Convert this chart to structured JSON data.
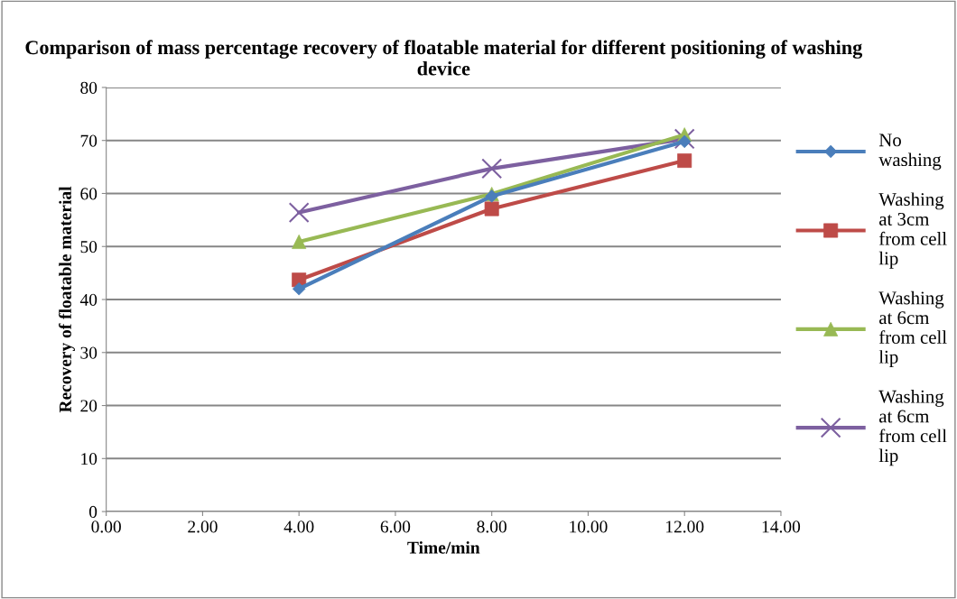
{
  "chart_data": {
    "type": "line",
    "title": "Comparison of mass percentage recovery of floatable material for different positioning of washing device",
    "xlabel": "Time/min",
    "ylabel": "Recovery of floatable material",
    "x": [
      4,
      8,
      12
    ],
    "series": [
      {
        "name": "No washing",
        "color": "#4a7ebb",
        "marker": "diamond",
        "values": [
          42.0,
          59.5,
          69.8
        ]
      },
      {
        "name": "Washing at 3cm from cell lip",
        "color": "#be4b48",
        "marker": "square",
        "values": [
          43.7,
          57.1,
          66.2
        ]
      },
      {
        "name": "Washing at 6cm from cell lip",
        "color": "#98b954",
        "marker": "triangle",
        "values": [
          50.9,
          59.9,
          71.1
        ]
      },
      {
        "name": "Washing at 6cm from cell lip",
        "color": "#7d60a0",
        "marker": "cross",
        "values": [
          56.4,
          64.7,
          70.3
        ]
      }
    ],
    "xlim": [
      0,
      14
    ],
    "xticks": [
      {
        "value": 0,
        "label": "0.00"
      },
      {
        "value": 2,
        "label": "2.00"
      },
      {
        "value": 4,
        "label": "4.00"
      },
      {
        "value": 6,
        "label": "6.00"
      },
      {
        "value": 8,
        "label": "8.00"
      },
      {
        "value": 10,
        "label": "10.00"
      },
      {
        "value": 12,
        "label": "12.00"
      },
      {
        "value": 14,
        "label": "14.00"
      }
    ],
    "ylim": [
      0,
      80
    ],
    "yticks": [
      0,
      10,
      20,
      30,
      40,
      50,
      60,
      70,
      80
    ],
    "grid": "y",
    "legend": "right",
    "line_style": "solid"
  }
}
